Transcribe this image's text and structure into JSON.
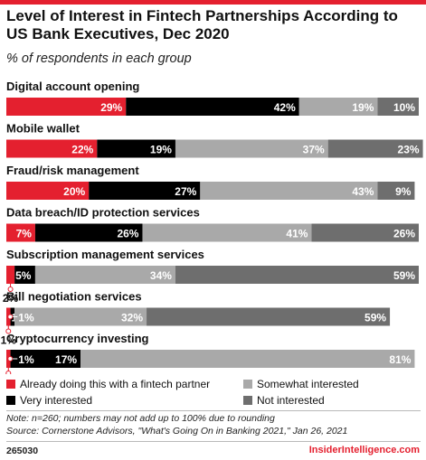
{
  "header": {
    "title": "Level of Interest in Fintech Partnerships According to US Bank Executives, Dec 2020",
    "subtitle": "% of respondents in each group"
  },
  "chart_data": {
    "type": "bar",
    "orientation": "horizontal",
    "stacked": true,
    "title": "Level of Interest in Fintech Partnerships According to US Bank Executives, Dec 2020",
    "subtitle": "% of respondents in each group",
    "xlim": [
      0,
      100
    ],
    "categories": [
      "Digital account opening",
      "Mobile wallet",
      "Fraud/risk management",
      "Data breach/ID protection services",
      "Subscription management services",
      "Bill negotiation services",
      "Cryptocurrency investing"
    ],
    "series": [
      {
        "name": "Already doing this with a fintech partner",
        "color": "#e4202f",
        "values": [
          29,
          22,
          20,
          7,
          2,
          1,
          1
        ]
      },
      {
        "name": "Very interested",
        "color": "#000000",
        "values": [
          42,
          19,
          27,
          26,
          5,
          1,
          17
        ]
      },
      {
        "name": "Somewhat interested",
        "color": "#a9a9a9",
        "values": [
          19,
          37,
          43,
          41,
          34,
          32,
          81
        ]
      },
      {
        "name": "Not interested",
        "color": "#6e6e6e",
        "values": [
          10,
          23,
          9,
          26,
          59,
          59,
          0
        ]
      }
    ],
    "legend": {
      "position": "bottom",
      "columns": 2
    }
  },
  "footer": {
    "note": "Note: n=260; numbers may not add up to 100% due to rounding",
    "source": "Source: Cornerstone Advisors, \"What's Going On in Banking 2021,\" Jan 26, 2021",
    "chart_id": "265030",
    "brand": "InsiderIntelligence.com"
  }
}
